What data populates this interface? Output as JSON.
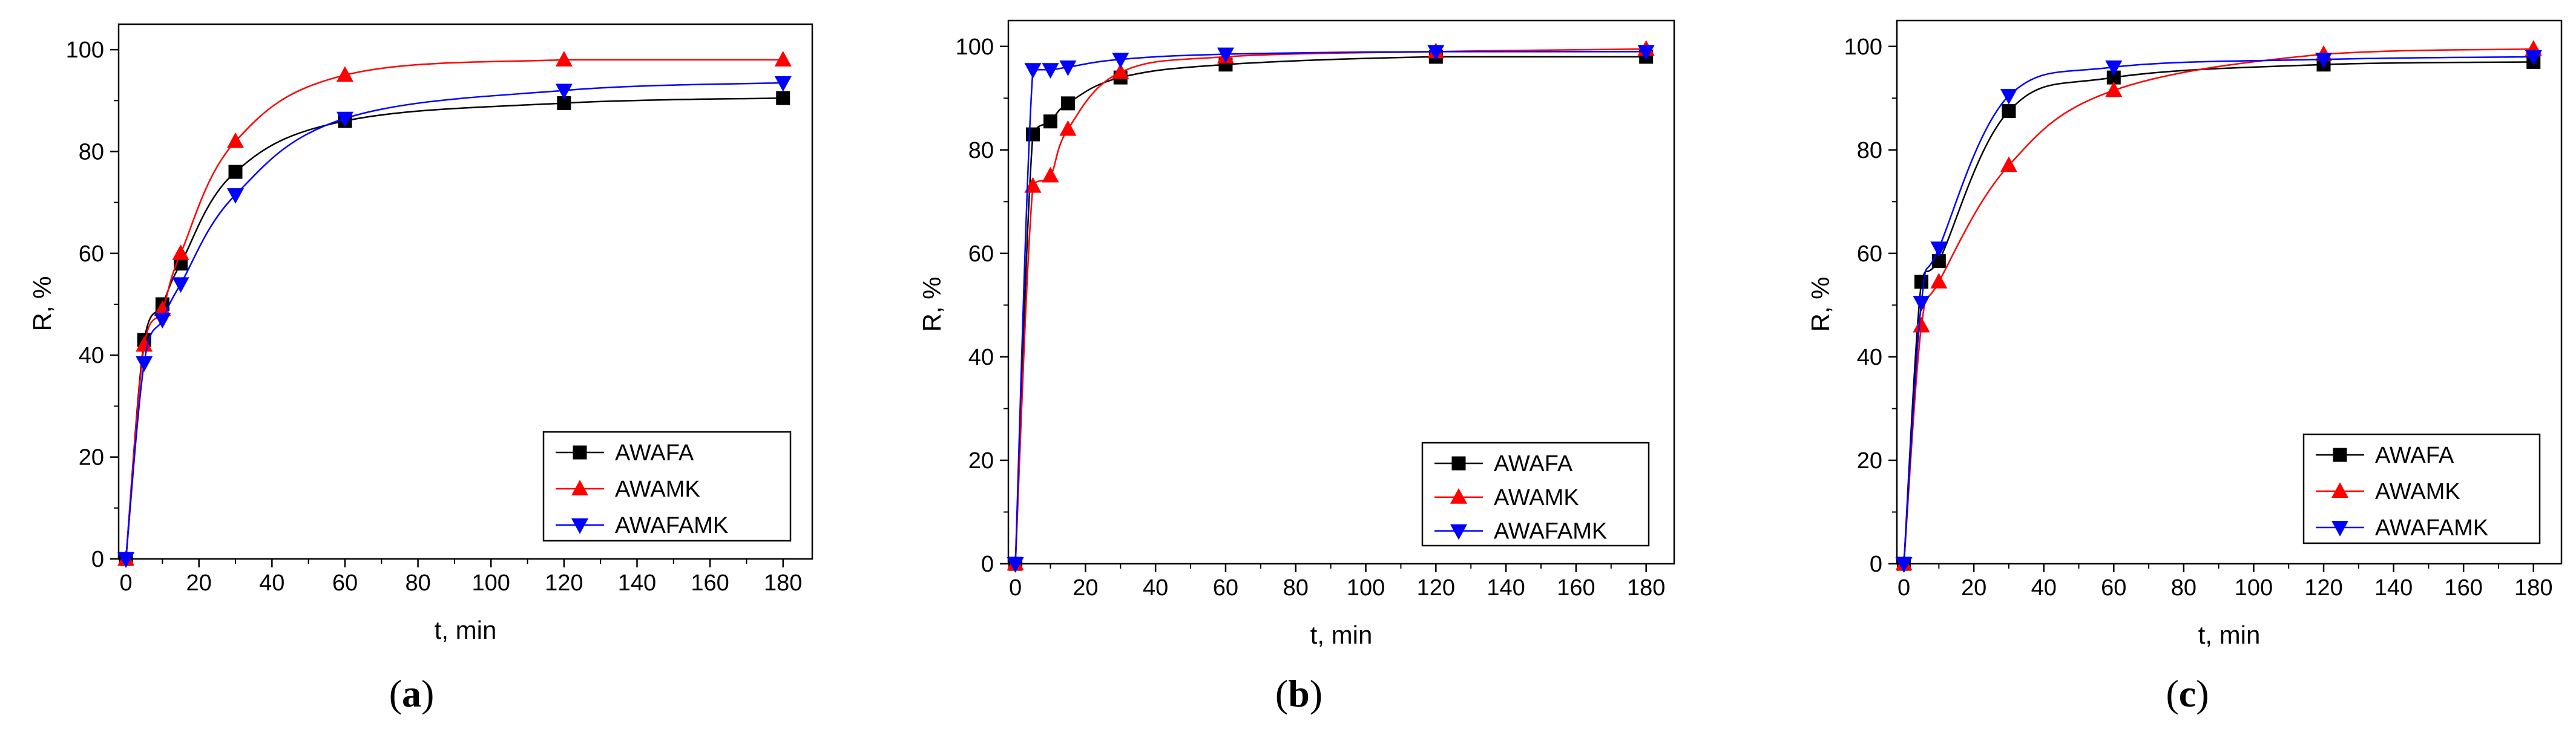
{
  "panels": [
    {
      "caption_open": "(",
      "caption_letter": "a",
      "caption_close": ")"
    },
    {
      "caption_open": "(",
      "caption_letter": "b",
      "caption_close": ")"
    },
    {
      "caption_open": "(",
      "caption_letter": "c",
      "caption_close": ")"
    }
  ],
  "colors": {
    "AWAFA": "#000000",
    "AWAMK": "#ff0000",
    "AWAFAMK": "#0000ff"
  },
  "chart_data": [
    {
      "type": "scatter",
      "xlabel": "t, min",
      "ylabel": "R, %",
      "xlim": [
        -2,
        188
      ],
      "ylim": [
        0,
        105
      ],
      "xticks": [
        0,
        20,
        40,
        60,
        80,
        100,
        120,
        140,
        160,
        180
      ],
      "yticks": [
        0,
        20,
        40,
        60,
        80,
        100
      ],
      "legend_position": "bottom-right",
      "fitted_curves": true,
      "series": [
        {
          "name": "AWAFA",
          "marker": "square",
          "x": [
            0,
            5,
            10,
            15,
            30,
            60,
            120,
            180
          ],
          "y": [
            0,
            43,
            50,
            58,
            76,
            86,
            89.5,
            90.5
          ]
        },
        {
          "name": "AWAMK",
          "marker": "triangle-up",
          "x": [
            0,
            5,
            10,
            15,
            30,
            60,
            120,
            180
          ],
          "y": [
            0,
            42,
            49,
            60,
            82,
            95,
            98,
            98
          ]
        },
        {
          "name": "AWAFAMK",
          "marker": "triangle-down",
          "x": [
            0,
            5,
            10,
            15,
            30,
            60,
            120,
            180
          ],
          "y": [
            0,
            38.5,
            47,
            54,
            71.5,
            86.5,
            92,
            93.5
          ]
        }
      ]
    },
    {
      "type": "scatter",
      "xlabel": "t, min",
      "ylabel": "R, %",
      "xlim": [
        -2,
        188
      ],
      "ylim": [
        0,
        105
      ],
      "xticks": [
        0,
        20,
        40,
        60,
        80,
        100,
        120,
        140,
        160,
        180
      ],
      "yticks": [
        0,
        20,
        40,
        60,
        80,
        100
      ],
      "legend_position": "bottom-right",
      "fitted_curves": true,
      "series": [
        {
          "name": "AWAFA",
          "marker": "square",
          "x": [
            0,
            5,
            10,
            15,
            30,
            60,
            120,
            180
          ],
          "y": [
            0,
            83,
            85.5,
            89,
            94,
            96.5,
            98,
            98
          ]
        },
        {
          "name": "AWAMK",
          "marker": "triangle-up",
          "x": [
            0,
            5,
            10,
            15,
            30,
            60,
            120,
            180
          ],
          "y": [
            0,
            73,
            75,
            84,
            95,
            98,
            99,
            99.5
          ]
        },
        {
          "name": "AWAFAMK",
          "marker": "triangle-down",
          "x": [
            0,
            5,
            10,
            15,
            30,
            60,
            120,
            180
          ],
          "y": [
            0,
            95.5,
            95.5,
            96,
            97.5,
            98.5,
            99,
            99
          ]
        }
      ]
    },
    {
      "type": "scatter",
      "xlabel": "t, min",
      "ylabel": "R, %",
      "xlim": [
        -2,
        188
      ],
      "ylim": [
        0,
        105
      ],
      "xticks": [
        0,
        20,
        40,
        60,
        80,
        100,
        120,
        140,
        160,
        180
      ],
      "yticks": [
        0,
        20,
        40,
        60,
        80,
        100
      ],
      "legend_position": "bottom-right",
      "fitted_curves": true,
      "series": [
        {
          "name": "AWAFA",
          "marker": "square",
          "x": [
            0,
            5,
            10,
            30,
            60,
            120,
            180
          ],
          "y": [
            0,
            54.5,
            58.5,
            87.5,
            94,
            96.5,
            97
          ]
        },
        {
          "name": "AWAMK",
          "marker": "triangle-up",
          "x": [
            0,
            5,
            10,
            30,
            60,
            120,
            180
          ],
          "y": [
            0,
            46,
            54.5,
            77,
            91.5,
            98.5,
            99.5
          ]
        },
        {
          "name": "AWAFAMK",
          "marker": "triangle-down",
          "x": [
            0,
            5,
            10,
            30,
            60,
            120,
            180
          ],
          "y": [
            0,
            50.5,
            61,
            90.5,
            96,
            97.5,
            98
          ]
        }
      ]
    }
  ]
}
